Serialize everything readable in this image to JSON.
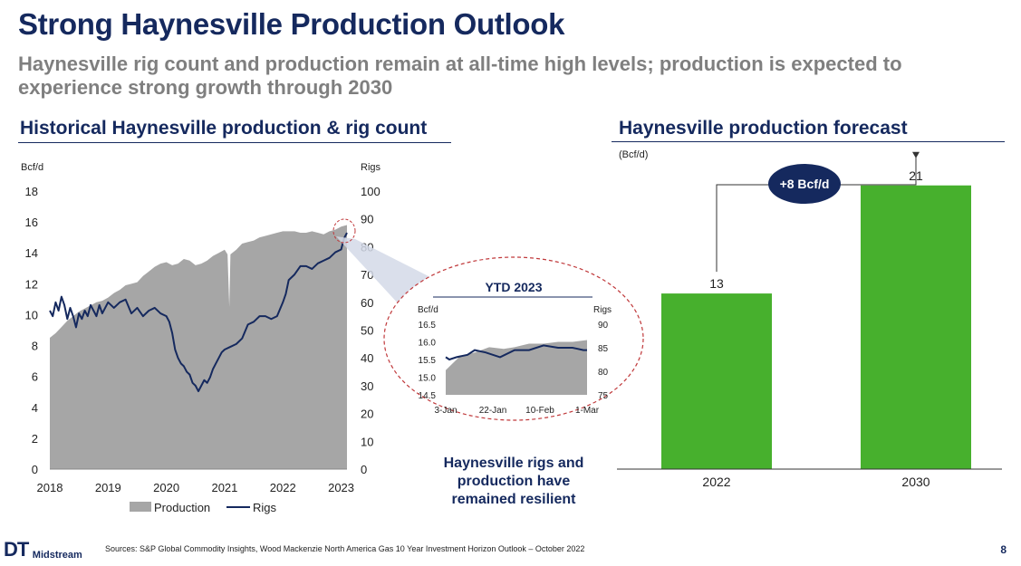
{
  "title": "Strong Haynesville Production Outlook",
  "subtitle": "Haynesville rig count and production remain at all-time high levels; production is expected to experience strong growth through 2030",
  "left_section_title": "Historical Haynesville production & rig count",
  "right_section_title": "Haynesville production forecast",
  "callout_text": "Haynesville rigs and production have remained resilient",
  "footer": {
    "brand_mark": "DT",
    "brand_word": "Midstream",
    "source": "Sources: S&P Global Commodity Insights, Wood Mackenzie North America Gas 10 Year Investment Horizon Outlook – October 2022",
    "page": "8"
  },
  "colors": {
    "navy": "#15295e",
    "gray_area": "#a6a6a6",
    "green_bar": "#47b02d",
    "dashed_red": "#c0393b"
  },
  "chart_data": [
    {
      "type": "area",
      "name": "historical",
      "left_unit": "Bcf/d",
      "right_unit": "Rigs",
      "y_left_ticks": [
        "0",
        "2",
        "4",
        "6",
        "8",
        "10",
        "12",
        "14",
        "16",
        "18"
      ],
      "y_right_ticks": [
        "0",
        "10",
        "20",
        "30",
        "40",
        "50",
        "60",
        "70",
        "80",
        "90",
        "100"
      ],
      "ylim_left": [
        0,
        18
      ],
      "ylim_right": [
        0,
        100
      ],
      "x_ticks": [
        "2018",
        "2019",
        "2020",
        "2021",
        "2022",
        "2023"
      ],
      "xlim": [
        2018,
        2023.1
      ],
      "legend": [
        "Production",
        "Rigs"
      ],
      "series": [
        {
          "name": "Production",
          "axis": "left",
          "kind": "area",
          "x": [
            2018.0,
            2018.1,
            2018.2,
            2018.3,
            2018.4,
            2018.5,
            2018.6,
            2018.7,
            2018.8,
            2018.9,
            2019.0,
            2019.1,
            2019.2,
            2019.3,
            2019.4,
            2019.5,
            2019.6,
            2019.7,
            2019.8,
            2019.9,
            2020.0,
            2020.1,
            2020.2,
            2020.3,
            2020.4,
            2020.5,
            2020.6,
            2020.7,
            2020.8,
            2020.9,
            2021.0,
            2021.05,
            2021.08,
            2021.1,
            2021.2,
            2021.3,
            2021.4,
            2021.5,
            2021.6,
            2021.7,
            2021.8,
            2021.9,
            2022.0,
            2022.1,
            2022.2,
            2022.3,
            2022.4,
            2022.5,
            2022.6,
            2022.7,
            2022.8,
            2022.9,
            2023.0,
            2023.1
          ],
          "values": [
            8.5,
            8.8,
            9.2,
            9.6,
            9.9,
            10.2,
            10.4,
            10.6,
            10.8,
            10.9,
            11.1,
            11.4,
            11.6,
            11.9,
            12.0,
            12.1,
            12.5,
            12.8,
            13.1,
            13.3,
            13.4,
            13.2,
            13.3,
            13.6,
            13.5,
            13.2,
            13.3,
            13.5,
            13.8,
            14.0,
            14.2,
            13.9,
            10.5,
            13.9,
            14.2,
            14.6,
            14.7,
            14.8,
            15.0,
            15.1,
            15.2,
            15.3,
            15.4,
            15.4,
            15.4,
            15.3,
            15.3,
            15.4,
            15.3,
            15.2,
            15.4,
            15.5,
            15.7,
            15.8
          ]
        },
        {
          "name": "Rigs",
          "axis": "right",
          "kind": "line",
          "x": [
            2018.0,
            2018.05,
            2018.1,
            2018.15,
            2018.2,
            2018.25,
            2018.3,
            2018.35,
            2018.4,
            2018.45,
            2018.5,
            2018.55,
            2018.6,
            2018.65,
            2018.7,
            2018.75,
            2018.8,
            2018.85,
            2018.9,
            2018.95,
            2019.0,
            2019.1,
            2019.2,
            2019.3,
            2019.4,
            2019.5,
            2019.6,
            2019.7,
            2019.8,
            2019.9,
            2020.0,
            2020.05,
            2020.1,
            2020.15,
            2020.2,
            2020.25,
            2020.3,
            2020.35,
            2020.4,
            2020.45,
            2020.5,
            2020.55,
            2020.6,
            2020.65,
            2020.7,
            2020.75,
            2020.8,
            2020.85,
            2020.9,
            2020.95,
            2021.0,
            2021.1,
            2021.2,
            2021.3,
            2021.4,
            2021.5,
            2021.6,
            2021.7,
            2021.8,
            2021.9,
            2022.0,
            2022.05,
            2022.1,
            2022.2,
            2022.3,
            2022.4,
            2022.5,
            2022.6,
            2022.7,
            2022.8,
            2022.9,
            2023.0,
            2023.05,
            2023.1
          ],
          "values": [
            57,
            55,
            60,
            57,
            62,
            59,
            54,
            58,
            55,
            51,
            56,
            54,
            57,
            55,
            59,
            57,
            55,
            59,
            56,
            58,
            60,
            58,
            60,
            61,
            56,
            58,
            55,
            57,
            58,
            56,
            55,
            53,
            49,
            43,
            40,
            38,
            37,
            35,
            34,
            31,
            30,
            28,
            30,
            32,
            31,
            33,
            36,
            38,
            40,
            42,
            43,
            44,
            45,
            47,
            52,
            53,
            55,
            55,
            54,
            55,
            60,
            63,
            68,
            70,
            73,
            73,
            72,
            74,
            75,
            76,
            78,
            79,
            83,
            85
          ]
        }
      ]
    },
    {
      "type": "area",
      "name": "inset_ytd_2023",
      "title": "YTD 2023",
      "left_unit": "Bcf/d",
      "right_unit": "Rigs",
      "y_left_ticks": [
        "14.5",
        "15.0",
        "15.5",
        "16.0",
        "16.5"
      ],
      "y_right_ticks": [
        "75",
        "80",
        "85",
        "90"
      ],
      "ylim_left": [
        14.5,
        16.5
      ],
      "ylim_right": [
        75,
        90
      ],
      "x_ticks": [
        "3-Jan",
        "22-Jan",
        "10-Feb",
        "1-Mar"
      ],
      "series": [
        {
          "name": "Production",
          "axis": "left",
          "kind": "area",
          "x": [
            0,
            4,
            8,
            12,
            16,
            19,
            23,
            27,
            31,
            35,
            39
          ],
          "values": [
            15.2,
            15.6,
            15.7,
            15.85,
            15.8,
            15.85,
            15.95,
            15.95,
            16.0,
            16.0,
            16.05
          ]
        },
        {
          "name": "Rigs",
          "axis": "right",
          "kind": "line",
          "x": [
            0,
            1,
            3,
            6,
            8,
            11,
            15,
            19,
            23,
            27,
            31,
            35,
            38,
            39
          ],
          "values": [
            83,
            82.5,
            83,
            83.5,
            84.5,
            84,
            83,
            84.5,
            84.5,
            85.5,
            85,
            85,
            84.5,
            84.5
          ]
        }
      ]
    },
    {
      "type": "bar",
      "name": "forecast",
      "unit": "(Bcf/d)",
      "categories": [
        "2022",
        "2030"
      ],
      "values": [
        13,
        21
      ],
      "value_labels": [
        "13",
        "21"
      ],
      "ylim": [
        0,
        24
      ],
      "annotation": "+8 Bcf/d"
    }
  ]
}
